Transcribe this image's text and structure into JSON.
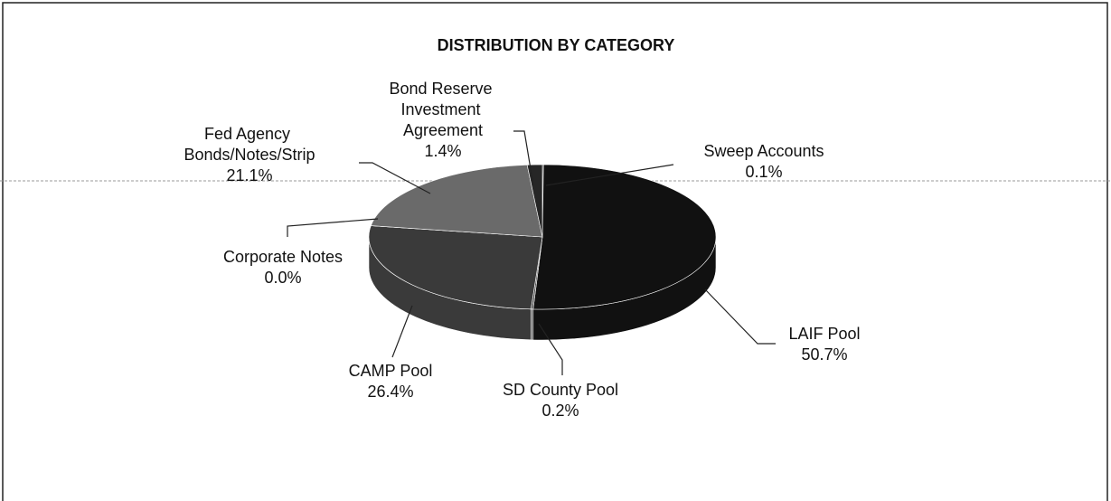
{
  "chart_data": {
    "type": "pie3d",
    "title": "DISTRIBUTION BY CATEGORY",
    "categories": [
      "Sweep Accounts",
      "LAIF Pool",
      "SD County Pool",
      "CAMP Pool",
      "Corporate Notes",
      "Fed Agency Bonds/Notes/Strip",
      "Bond Reserve Investment Agreement"
    ],
    "values": [
      0.1,
      50.7,
      0.2,
      26.4,
      0.0,
      21.1,
      1.4
    ],
    "value_labels": [
      "0.1%",
      "50.7%",
      "0.2%",
      "26.4%",
      "0.0%",
      "21.1%",
      "1.4%"
    ],
    "colors": [
      "#000000",
      "#111111",
      "#555555",
      "#3a3a3a",
      "#999999",
      "#6a6a6a",
      "#262626"
    ]
  }
}
